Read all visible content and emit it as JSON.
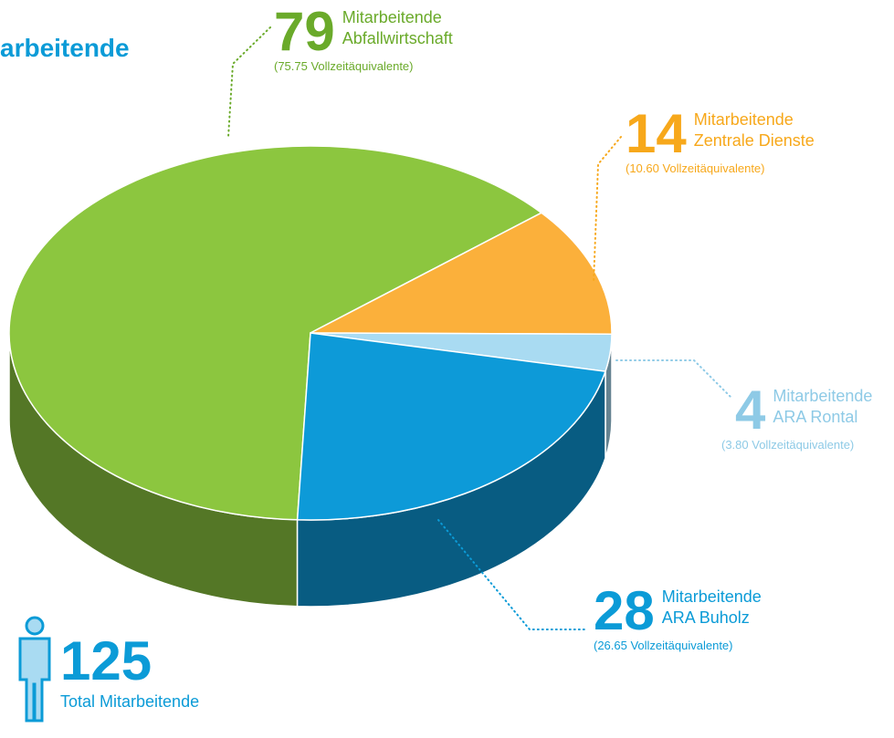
{
  "chart_data": {
    "type": "pie",
    "title": "arbeitende",
    "categories": [
      "Abfallwirtschaft",
      "Zentrale Dienste",
      "ARA Rontal",
      "ARA Buholz"
    ],
    "values": [
      79,
      14,
      4,
      28
    ],
    "unit_label": "Mitarbeitende",
    "fte_labels": [
      "(75.75 Vollzeitäquivalente)",
      "(10.60 Vollzeitäquivalente)",
      "(3.80 Vollzeitäquivalente)",
      "(26.65 Vollzeitäquivalente)"
    ],
    "colors": [
      "#8cc63f",
      "#fbb03b",
      "#a9dbf2",
      "#0d9ad8"
    ],
    "label_colors": [
      "#6aaa2a",
      "#f7a81b",
      "#8ecae6",
      "#0b9bd7"
    ],
    "total": 125,
    "total_label": "Total Mitarbeitende"
  }
}
